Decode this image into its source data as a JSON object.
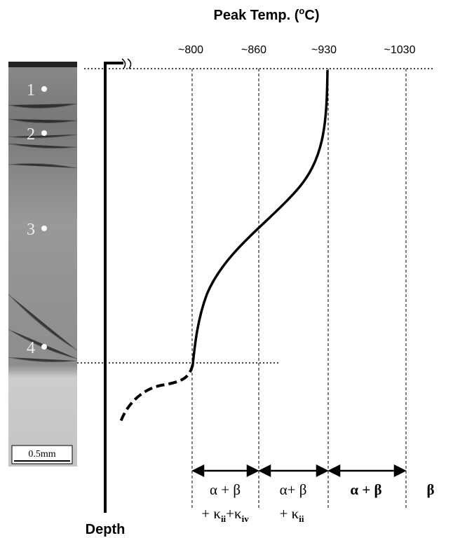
{
  "title": {
    "prefix": "Peak Temp. (",
    "superscript": "o",
    "suffix": "C)"
  },
  "temperature_labels": [
    "~800",
    "~860",
    "~930",
    "~1030"
  ],
  "y_axis_label": "Depth",
  "micrograph": {
    "points": [
      "1",
      "2",
      "3",
      "4"
    ],
    "scale_bar": "0.5mm"
  },
  "phases": [
    {
      "line1": "α + β",
      "line2": [
        "+ κ",
        "ii",
        "+κ",
        "iv"
      ]
    },
    {
      "line1": "α+ β",
      "line2": [
        "+ κ",
        "ii"
      ]
    },
    {
      "line1": "α + β"
    },
    {
      "line1": "β"
    }
  ]
}
